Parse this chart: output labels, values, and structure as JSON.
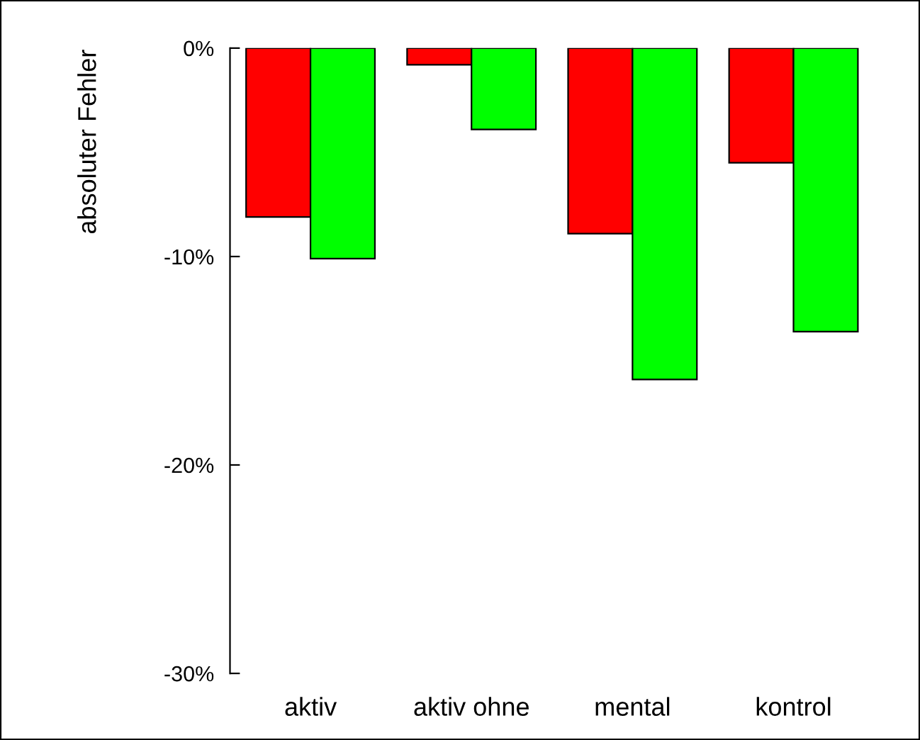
{
  "chart_data": {
    "type": "bar",
    "ylabel": "absoluter Fehler",
    "categories": [
      "aktiv",
      "aktiv ohne",
      "mental",
      "kontrol"
    ],
    "series": [
      {
        "color": "#ff0000",
        "values": [
          -8.1,
          -0.8,
          -8.9,
          -5.5
        ]
      },
      {
        "color": "#00ff00",
        "values": [
          -10.1,
          -3.9,
          -15.9,
          -13.6
        ]
      }
    ],
    "ylim": [
      -30,
      0
    ],
    "yticks": [
      {
        "value": 0,
        "label": "0%"
      },
      {
        "value": -10,
        "label": "-10%"
      },
      {
        "value": -20,
        "label": "-20%"
      },
      {
        "value": -30,
        "label": "-30%"
      }
    ],
    "grid": false,
    "legend": false
  }
}
